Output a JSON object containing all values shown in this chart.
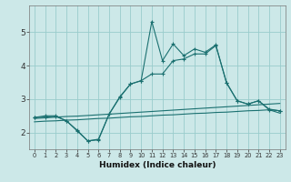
{
  "xlabel": "Humidex (Indice chaleur)",
  "bg_color": "#cce8e8",
  "grid_color": "#99cccc",
  "line_color": "#1a7070",
  "xlim": [
    -0.5,
    23.5
  ],
  "ylim": [
    1.5,
    5.8
  ],
  "yticks": [
    2,
    3,
    4,
    5
  ],
  "xticks": [
    0,
    1,
    2,
    3,
    4,
    5,
    6,
    7,
    8,
    9,
    10,
    11,
    12,
    13,
    14,
    15,
    16,
    17,
    18,
    19,
    20,
    21,
    22,
    23
  ],
  "s1_x": [
    0,
    1,
    2,
    3,
    4,
    5,
    6,
    7,
    8,
    9,
    10,
    11,
    12,
    13,
    14,
    15,
    16,
    17,
    18,
    19,
    20,
    21,
    22,
    23
  ],
  "s1_y": [
    2.45,
    2.46,
    2.48,
    2.35,
    2.07,
    1.75,
    1.78,
    2.55,
    3.07,
    3.45,
    3.55,
    5.32,
    4.15,
    4.65,
    4.3,
    4.5,
    4.4,
    4.62,
    3.48,
    2.95,
    2.85,
    2.95,
    2.68,
    2.65
  ],
  "s2_x": [
    0,
    1,
    2,
    3,
    4,
    5,
    6,
    7,
    8,
    9,
    10,
    11,
    12,
    13,
    14,
    15,
    16,
    17,
    18,
    19,
    20,
    21,
    22,
    23
  ],
  "s2_y": [
    2.45,
    2.5,
    2.5,
    2.35,
    2.05,
    1.75,
    1.8,
    2.55,
    3.05,
    3.45,
    3.55,
    3.75,
    3.75,
    4.15,
    4.2,
    4.35,
    4.35,
    4.6,
    3.5,
    2.95,
    2.85,
    2.95,
    2.7,
    2.65
  ],
  "s3_x": [
    0,
    1,
    2,
    3,
    4,
    5,
    6,
    7,
    8,
    9,
    10,
    11,
    12,
    13,
    14,
    15,
    16,
    17,
    18,
    19,
    20,
    21,
    22,
    23
  ],
  "s3_y": [
    2.42,
    2.44,
    2.46,
    2.48,
    2.49,
    2.51,
    2.53,
    2.55,
    2.57,
    2.59,
    2.61,
    2.63,
    2.65,
    2.67,
    2.69,
    2.71,
    2.73,
    2.75,
    2.77,
    2.79,
    2.81,
    2.83,
    2.85,
    2.87
  ],
  "s4_x": [
    0,
    1,
    2,
    3,
    4,
    5,
    6,
    7,
    8,
    9,
    10,
    11,
    12,
    13,
    14,
    15,
    16,
    17,
    18,
    19,
    20,
    21,
    22,
    23
  ],
  "s4_y": [
    2.32,
    2.34,
    2.35,
    2.37,
    2.38,
    2.4,
    2.42,
    2.43,
    2.45,
    2.47,
    2.48,
    2.5,
    2.52,
    2.53,
    2.55,
    2.57,
    2.58,
    2.6,
    2.61,
    2.63,
    2.65,
    2.66,
    2.68,
    2.58
  ]
}
